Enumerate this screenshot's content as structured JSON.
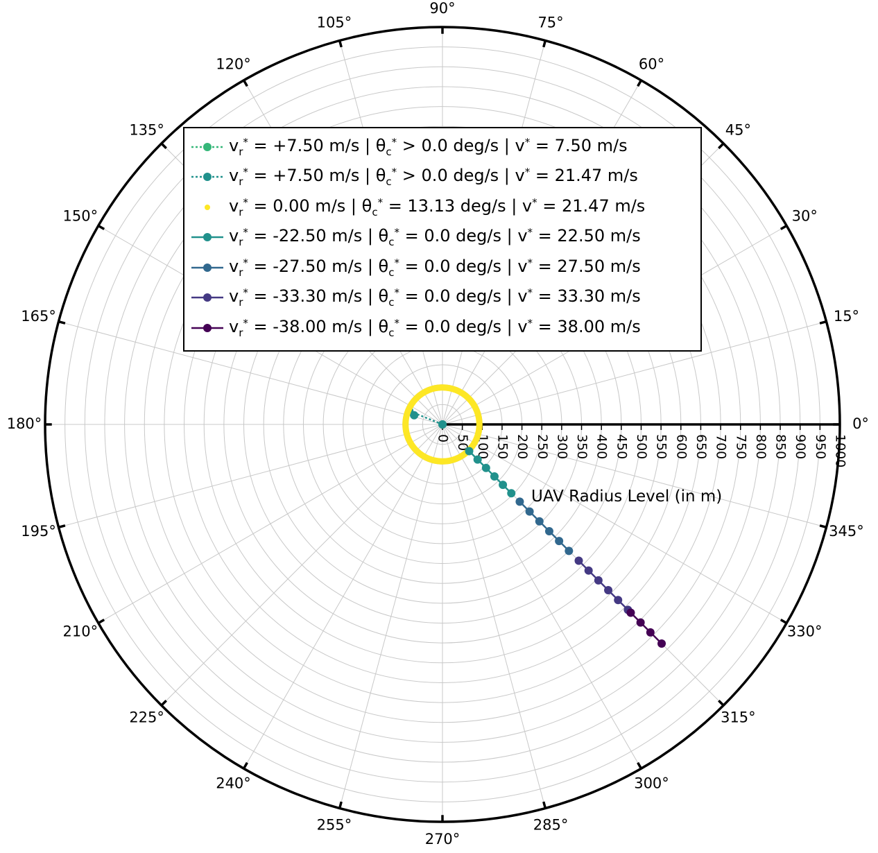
{
  "chart_data": {
    "type": "polar",
    "radial_axis": {
      "label": "UAV Radius Level (in m)",
      "ticks": [
        "0",
        "50",
        "100",
        "150",
        "200",
        "250",
        "300",
        "350",
        "400",
        "450",
        "500",
        "550",
        "600",
        "650",
        "700",
        "750",
        "800",
        "850",
        "900",
        "950",
        "1000"
      ],
      "rmax": 1000,
      "tick_step": 50
    },
    "angular_axis": {
      "ticks": [
        "0°",
        "15°",
        "30°",
        "45°",
        "60°",
        "75°",
        "90°",
        "105°",
        "120°",
        "135°",
        "150°",
        "165°",
        "180°",
        "195°",
        "210°",
        "225°",
        "240°",
        "255°",
        "270°",
        "285°",
        "300°",
        "315°",
        "330°",
        "345°"
      ],
      "step_deg": 15
    },
    "grid": true,
    "legend_position": "upper-center",
    "series": [
      {
        "label_parts": [
          "v",
          "r",
          "*",
          " =  +7.50 m/s | θ",
          "c",
          "*",
          " > 0.0 deg/s | v",
          "*",
          " = 7.50 m/s"
        ],
        "color": "#35b779",
        "style": "dotted-marker",
        "points": [
          [
            0,
            0
          ]
        ]
      },
      {
        "label_parts": [
          "v",
          "r",
          "*",
          " =  +7.50 m/s | θ",
          "c",
          "*",
          " > 0.0 deg/s | v",
          "*",
          " = 21.47 m/s"
        ],
        "color": "#21918c",
        "style": "dotted-marker",
        "points": [
          [
            0,
            0
          ],
          [
            90,
            158
          ],
          [
            75,
            162
          ]
        ]
      },
      {
        "label_parts": [
          "v",
          "r",
          "*",
          " =  0.00 m/s | θ",
          "c",
          "*",
          " = 13.13 deg/s | v",
          "*",
          " = 21.47 m/s"
        ],
        "color": "#fde725",
        "style": "marker",
        "circle_radius": 93,
        "points": []
      },
      {
        "label_parts": [
          "v",
          "r",
          "*",
          " =  -22.50 m/s | θ",
          "c",
          "*",
          " = 0.0 deg/s | v",
          "*",
          " = 22.50 m/s"
        ],
        "color": "#21918c",
        "style": "solid-marker",
        "points": [
          [
            95,
            315
          ],
          [
            125,
            315
          ],
          [
            155,
            315
          ],
          [
            185,
            315
          ],
          [
            215,
            315
          ],
          [
            245,
            315
          ]
        ]
      },
      {
        "label_parts": [
          "v",
          "r",
          "*",
          " =  -27.50 m/s | θ",
          "c",
          "*",
          " = 0.0 deg/s | v",
          "*",
          " = 27.50 m/s"
        ],
        "color": "#31688e",
        "style": "solid-marker",
        "points": [
          [
            275,
            315
          ],
          [
            310,
            315
          ],
          [
            345,
            315
          ],
          [
            380,
            315
          ],
          [
            415,
            315
          ],
          [
            450,
            315
          ]
        ]
      },
      {
        "label_parts": [
          "v",
          "r",
          "*",
          " =  -33.30 m/s | θ",
          "c",
          "*",
          " = 0.0 deg/s | v",
          "*",
          " = 33.30 m/s"
        ],
        "color": "#443983",
        "style": "solid-marker",
        "points": [
          [
            485,
            315
          ],
          [
            520,
            315
          ],
          [
            555,
            315
          ],
          [
            590,
            315
          ],
          [
            625,
            315
          ],
          [
            660,
            315
          ]
        ]
      },
      {
        "label_parts": [
          "v",
          "r",
          "*",
          " =  -38.00 m/s | θ",
          "c",
          "*",
          " = 0.0 deg/s | v",
          "*",
          " = 38.00 m/s"
        ],
        "color": "#440154",
        "style": "solid-marker",
        "points": [
          [
            670,
            315
          ],
          [
            705,
            315
          ],
          [
            740,
            315
          ],
          [
            780,
            315
          ]
        ]
      }
    ]
  }
}
